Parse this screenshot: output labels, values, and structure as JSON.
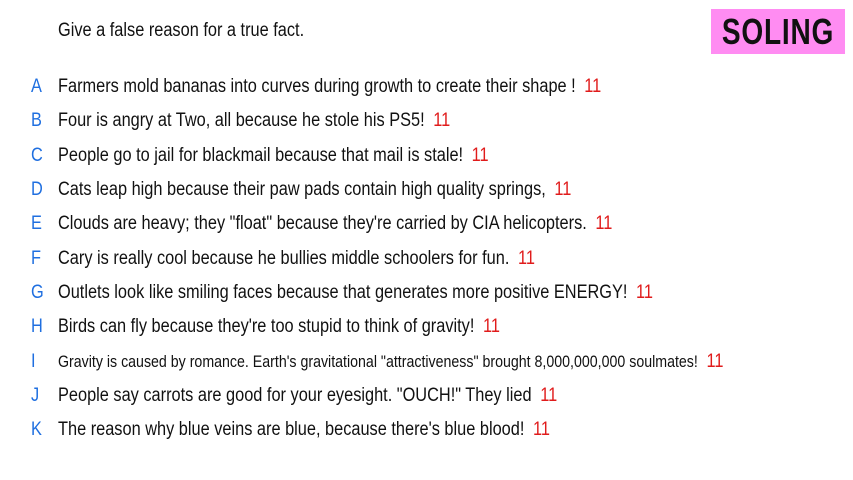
{
  "header": {
    "prompt": "Give a false reason for a true fact.",
    "badge": "SOLING"
  },
  "colors": {
    "letter": "#1f6fe0",
    "score": "#e01b1b",
    "badge_bg": "#ff8cf2",
    "text": "#111111"
  },
  "answers": [
    {
      "letter": "A",
      "text": "Farmers mold bananas into curves during growth to create their shape !",
      "score": "11"
    },
    {
      "letter": "B",
      "text": "Four is angry at Two, all because he stole his PS5!",
      "score": "11"
    },
    {
      "letter": "C",
      "text": "People go to jail for blackmail because that mail is stale!",
      "score": "11"
    },
    {
      "letter": "D",
      "text": "Cats leap high because their paw pads contain high quality springs,",
      "score": "11"
    },
    {
      "letter": "E",
      "text": "Clouds are heavy; they \"float\" because they're carried by CIA helicopters.",
      "score": "11"
    },
    {
      "letter": "F",
      "text": "Cary is really cool because he bullies middle schoolers for fun.",
      "score": "11"
    },
    {
      "letter": "G",
      "text": "Outlets look like smiling faces because that generates more positive ENERGY!",
      "score": "11"
    },
    {
      "letter": "H",
      "text": "Birds can fly because they're too stupid to think of gravity!",
      "score": "11"
    },
    {
      "letter": "I",
      "text": "Gravity is caused by romance. Earth's gravitational \"attractiveness\" brought 8,000,000,000 soulmates!",
      "score": "11"
    },
    {
      "letter": "J",
      "text": "People say carrots are good for your eyesight. \"OUCH!\" They lied",
      "score": "11"
    },
    {
      "letter": "K",
      "text": "The reason why blue veins are blue, because there's blue blood!",
      "score": "11"
    }
  ]
}
